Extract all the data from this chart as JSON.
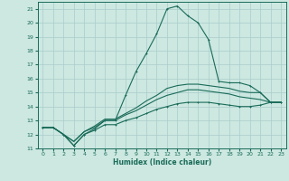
{
  "xlabel": "Humidex (Indice chaleur)",
  "bg_color": "#cce8e0",
  "grid_color": "#aacccc",
  "line_color": "#1a6b5a",
  "xlim": [
    -0.5,
    23.5
  ],
  "ylim": [
    11,
    21.5
  ],
  "yticks": [
    11,
    12,
    13,
    14,
    15,
    16,
    17,
    18,
    19,
    20,
    21
  ],
  "xticks": [
    0,
    1,
    2,
    3,
    4,
    5,
    6,
    7,
    8,
    9,
    10,
    11,
    12,
    13,
    14,
    15,
    16,
    17,
    18,
    19,
    20,
    21,
    22,
    23
  ],
  "line1": {
    "x": [
      0,
      1,
      2,
      3,
      4,
      5,
      6,
      7,
      8,
      9,
      10,
      11,
      12,
      13,
      14,
      15,
      16,
      17,
      18,
      19,
      20,
      21,
      22,
      23
    ],
    "y": [
      12.5,
      12.5,
      12.0,
      11.2,
      12.0,
      12.3,
      12.7,
      12.7,
      13.0,
      13.2,
      13.5,
      13.8,
      14.0,
      14.2,
      14.3,
      14.3,
      14.3,
      14.2,
      14.1,
      14.0,
      14.0,
      14.1,
      14.3,
      14.3
    ],
    "marker": true
  },
  "line2": {
    "x": [
      0,
      1,
      2,
      3,
      4,
      5,
      6,
      7,
      8,
      9,
      10,
      11,
      12,
      13,
      14,
      15,
      16,
      17,
      18,
      19,
      20,
      21,
      22,
      23
    ],
    "y": [
      12.5,
      12.5,
      12.0,
      11.5,
      12.2,
      12.5,
      13.0,
      13.0,
      13.4,
      13.7,
      14.1,
      14.5,
      14.8,
      15.0,
      15.2,
      15.2,
      15.1,
      15.0,
      14.9,
      14.7,
      14.6,
      14.5,
      14.3,
      14.3
    ],
    "marker": false
  },
  "line3": {
    "x": [
      0,
      1,
      2,
      3,
      4,
      5,
      6,
      7,
      8,
      9,
      10,
      11,
      12,
      13,
      14,
      15,
      16,
      17,
      18,
      19,
      20,
      21,
      22,
      23
    ],
    "y": [
      12.5,
      12.5,
      12.0,
      11.2,
      12.0,
      12.4,
      13.0,
      13.0,
      14.8,
      16.5,
      17.8,
      19.2,
      21.0,
      21.2,
      20.5,
      20.0,
      18.8,
      15.8,
      15.7,
      15.7,
      15.5,
      15.0,
      14.3,
      14.3
    ],
    "marker": true
  },
  "line4": {
    "x": [
      0,
      1,
      2,
      3,
      4,
      5,
      6,
      7,
      8,
      9,
      10,
      11,
      12,
      13,
      14,
      15,
      16,
      17,
      18,
      19,
      20,
      21,
      22,
      23
    ],
    "y": [
      12.5,
      12.5,
      12.0,
      11.5,
      12.2,
      12.6,
      13.1,
      13.1,
      13.5,
      13.9,
      14.4,
      14.8,
      15.3,
      15.5,
      15.6,
      15.6,
      15.5,
      15.4,
      15.3,
      15.1,
      15.0,
      15.0,
      14.3,
      14.3
    ],
    "marker": false
  }
}
